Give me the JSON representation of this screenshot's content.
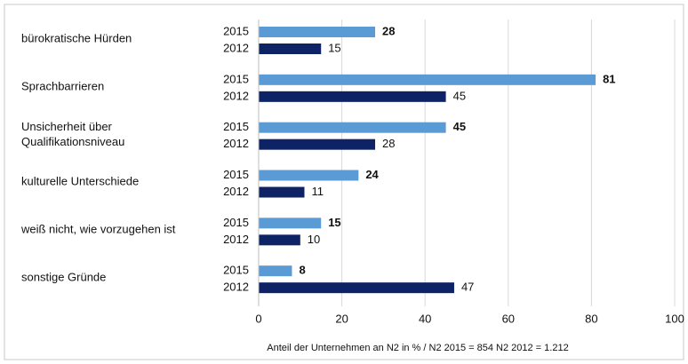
{
  "chart_data": {
    "type": "hbar",
    "categories": [
      "bürokratische Hürden",
      "Sprachbarrieren",
      "Unsicherheit über Qualifikationsniveau",
      "kulturelle Unterschiede",
      "weiß nicht, wie vorzugehen ist",
      "sonstige Gründe"
    ],
    "series": [
      {
        "name": "2015",
        "color": "#5b9bd5",
        "values": [
          28,
          81,
          45,
          24,
          15,
          8
        ]
      },
      {
        "name": "2012",
        "color": "#0d2366",
        "values": [
          15,
          45,
          28,
          11,
          10,
          47
        ]
      }
    ],
    "xlabel": "Anteil der Unternehmen an N2 in %  /  N2 2015 = 854  N2 2012 = 1.212",
    "xlim": [
      0,
      100
    ],
    "xticks": [
      0,
      20,
      40,
      60,
      80,
      100
    ],
    "grid": true
  }
}
